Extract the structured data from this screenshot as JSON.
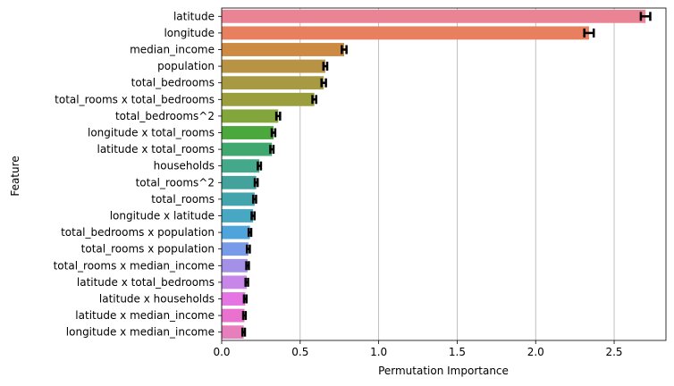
{
  "chart_data": {
    "type": "bar",
    "orientation": "horizontal",
    "xlabel": "Permutation Importance",
    "ylabel": "Feature",
    "xlim": [
      0,
      2.83
    ],
    "xticks": [
      "0.0",
      "0.5",
      "1.0",
      "1.5",
      "2.0",
      "2.5"
    ],
    "grid": "vertical",
    "categories": [
      "latitude",
      "longitude",
      "median_income",
      "population",
      "total_bedrooms",
      "total_rooms x total_bedrooms",
      "total_bedrooms^2",
      "longitude x total_rooms",
      "latitude x total_rooms",
      "households",
      "total_rooms^2",
      "total_rooms",
      "longitude x latitude",
      "total_bedrooms x population",
      "total_rooms x population",
      "total_rooms x median_income",
      "latitude x total_bedrooms",
      "latitude x households",
      "latitude x median_income",
      "longitude x median_income"
    ],
    "values": [
      2.7,
      2.34,
      0.78,
      0.66,
      0.65,
      0.59,
      0.36,
      0.33,
      0.32,
      0.24,
      0.22,
      0.21,
      0.2,
      0.18,
      0.17,
      0.165,
      0.16,
      0.15,
      0.145,
      0.14
    ],
    "errors": [
      0.03,
      0.03,
      0.015,
      0.012,
      0.014,
      0.012,
      0.012,
      0.011,
      0.01,
      0.01,
      0.009,
      0.009,
      0.009,
      0.008,
      0.009,
      0.008,
      0.008,
      0.008,
      0.008,
      0.008
    ],
    "colors": [
      "#ea8494",
      "#e8805f",
      "#cc8a43",
      "#b89345",
      "#a89a43",
      "#9a9e3c",
      "#82a63c",
      "#4ba83c",
      "#40a76e",
      "#44a88b",
      "#43a39c",
      "#44a4ab",
      "#48a8c3",
      "#4fa4dc",
      "#789ae8",
      "#a490e6",
      "#c887e8",
      "#e475e2",
      "#ea72cf",
      "#e77fbd"
    ]
  }
}
